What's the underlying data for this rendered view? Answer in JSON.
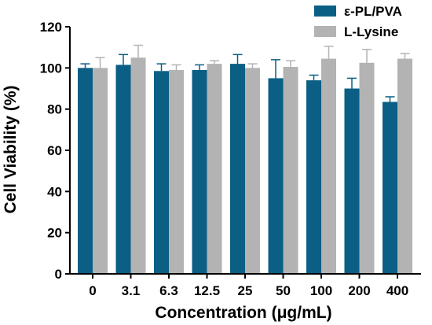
{
  "chart_data": {
    "type": "bar",
    "xlabel": "Concentration (μg/mL)",
    "ylabel": "Cell Viability (%)",
    "ylim": [
      0,
      120
    ],
    "yticks": [
      0,
      20,
      40,
      60,
      80,
      100,
      120
    ],
    "categories": [
      "0",
      "3.1",
      "6.3",
      "12.5",
      "25",
      "50",
      "100",
      "200",
      "400"
    ],
    "legend_position": "top-right",
    "series": [
      {
        "name": "ε-PL/PVA",
        "color": "#0b5f84",
        "values": [
          100,
          101.5,
          98.5,
          99,
          102,
          95,
          94,
          90,
          83.5
        ],
        "errors": [
          2,
          5,
          3.5,
          2.5,
          4.5,
          9,
          2.5,
          5,
          2.5
        ]
      },
      {
        "name": "L-Lysine",
        "color": "#b3b3b3",
        "values": [
          100,
          105,
          99,
          102,
          100,
          100.5,
          104.5,
          102.5,
          104.5
        ],
        "errors": [
          5,
          6,
          2.5,
          1.5,
          2,
          3,
          6,
          6.5,
          2.5
        ]
      }
    ]
  }
}
